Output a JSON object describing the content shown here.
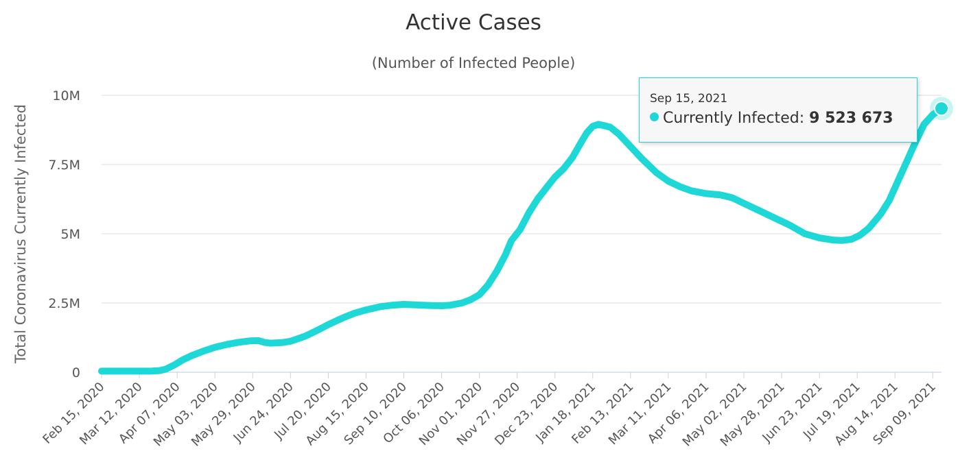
{
  "chart_data": {
    "type": "line",
    "title": "Active Cases",
    "subtitle": "(Number of Infected People)",
    "ylabel": "Total Coronavirus Currently Infected",
    "xlabel": "",
    "ylim": [
      0,
      10000000
    ],
    "yticks": [
      {
        "value": 0,
        "label": "0"
      },
      {
        "value": 2500000,
        "label": "2.5M"
      },
      {
        "value": 5000000,
        "label": "5M"
      },
      {
        "value": 7500000,
        "label": "7.5M"
      },
      {
        "value": 10000000,
        "label": "10M"
      }
    ],
    "x_start": "2020-02-15",
    "x_end": "2021-09-15",
    "xticks": [
      {
        "day": 0,
        "label": "Feb 15, 2020"
      },
      {
        "day": 26,
        "label": "Mar 12, 2020"
      },
      {
        "day": 52,
        "label": "Apr 07, 2020"
      },
      {
        "day": 78,
        "label": "May 03, 2020"
      },
      {
        "day": 104,
        "label": "May 29, 2020"
      },
      {
        "day": 130,
        "label": "Jun 24, 2020"
      },
      {
        "day": 156,
        "label": "Jul 20, 2020"
      },
      {
        "day": 182,
        "label": "Aug 15, 2020"
      },
      {
        "day": 208,
        "label": "Sep 10, 2020"
      },
      {
        "day": 234,
        "label": "Oct 06, 2020"
      },
      {
        "day": 260,
        "label": "Nov 01, 2020"
      },
      {
        "day": 286,
        "label": "Nov 27, 2020"
      },
      {
        "day": 312,
        "label": "Dec 23, 2020"
      },
      {
        "day": 338,
        "label": "Jan 18, 2021"
      },
      {
        "day": 364,
        "label": "Feb 13, 2021"
      },
      {
        "day": 390,
        "label": "Mar 11, 2021"
      },
      {
        "day": 416,
        "label": "Apr 06, 2021"
      },
      {
        "day": 442,
        "label": "May 02, 2021"
      },
      {
        "day": 468,
        "label": "May 28, 2021"
      },
      {
        "day": 494,
        "label": "Jun 23, 2021"
      },
      {
        "day": 520,
        "label": "Jul 19, 2021"
      },
      {
        "day": 546,
        "label": "Aug 14, 2021"
      },
      {
        "day": 572,
        "label": "Sep 09, 2021"
      }
    ],
    "series": [
      {
        "name": "Currently Infected",
        "color": "#1ed8d8",
        "points": [
          [
            0,
            40000
          ],
          [
            20,
            40000
          ],
          [
            34,
            40000
          ],
          [
            40,
            60000
          ],
          [
            44,
            110000
          ],
          [
            50,
            260000
          ],
          [
            56,
            450000
          ],
          [
            62,
            600000
          ],
          [
            70,
            760000
          ],
          [
            78,
            900000
          ],
          [
            86,
            1000000
          ],
          [
            94,
            1080000
          ],
          [
            102,
            1130000
          ],
          [
            108,
            1140000
          ],
          [
            112,
            1080000
          ],
          [
            116,
            1050000
          ],
          [
            124,
            1070000
          ],
          [
            130,
            1120000
          ],
          [
            140,
            1300000
          ],
          [
            148,
            1500000
          ],
          [
            156,
            1720000
          ],
          [
            166,
            1960000
          ],
          [
            174,
            2130000
          ],
          [
            182,
            2250000
          ],
          [
            192,
            2370000
          ],
          [
            200,
            2420000
          ],
          [
            208,
            2450000
          ],
          [
            216,
            2430000
          ],
          [
            226,
            2410000
          ],
          [
            234,
            2400000
          ],
          [
            240,
            2420000
          ],
          [
            248,
            2500000
          ],
          [
            254,
            2620000
          ],
          [
            260,
            2800000
          ],
          [
            266,
            3150000
          ],
          [
            272,
            3650000
          ],
          [
            278,
            4250000
          ],
          [
            282,
            4750000
          ],
          [
            288,
            5150000
          ],
          [
            294,
            5750000
          ],
          [
            300,
            6250000
          ],
          [
            306,
            6650000
          ],
          [
            312,
            7050000
          ],
          [
            318,
            7350000
          ],
          [
            324,
            7750000
          ],
          [
            330,
            8300000
          ],
          [
            334,
            8650000
          ],
          [
            338,
            8880000
          ],
          [
            342,
            8950000
          ],
          [
            346,
            8900000
          ],
          [
            350,
            8850000
          ],
          [
            356,
            8600000
          ],
          [
            364,
            8150000
          ],
          [
            372,
            7700000
          ],
          [
            382,
            7200000
          ],
          [
            390,
            6900000
          ],
          [
            398,
            6700000
          ],
          [
            406,
            6550000
          ],
          [
            416,
            6450000
          ],
          [
            426,
            6400000
          ],
          [
            434,
            6300000
          ],
          [
            442,
            6100000
          ],
          [
            452,
            5850000
          ],
          [
            462,
            5600000
          ],
          [
            474,
            5300000
          ],
          [
            484,
            5000000
          ],
          [
            494,
            4850000
          ],
          [
            504,
            4770000
          ],
          [
            510,
            4760000
          ],
          [
            516,
            4800000
          ],
          [
            522,
            4950000
          ],
          [
            528,
            5200000
          ],
          [
            536,
            5700000
          ],
          [
            542,
            6200000
          ],
          [
            548,
            6900000
          ],
          [
            554,
            7600000
          ],
          [
            560,
            8300000
          ],
          [
            566,
            8950000
          ],
          [
            572,
            9300000
          ],
          [
            578,
            9523673
          ]
        ]
      }
    ],
    "highlight": {
      "date": "Sep 15, 2021",
      "series_label": "Currently Infected:",
      "value_label": "9 523 673",
      "day": 578,
      "value": 9523673
    }
  }
}
